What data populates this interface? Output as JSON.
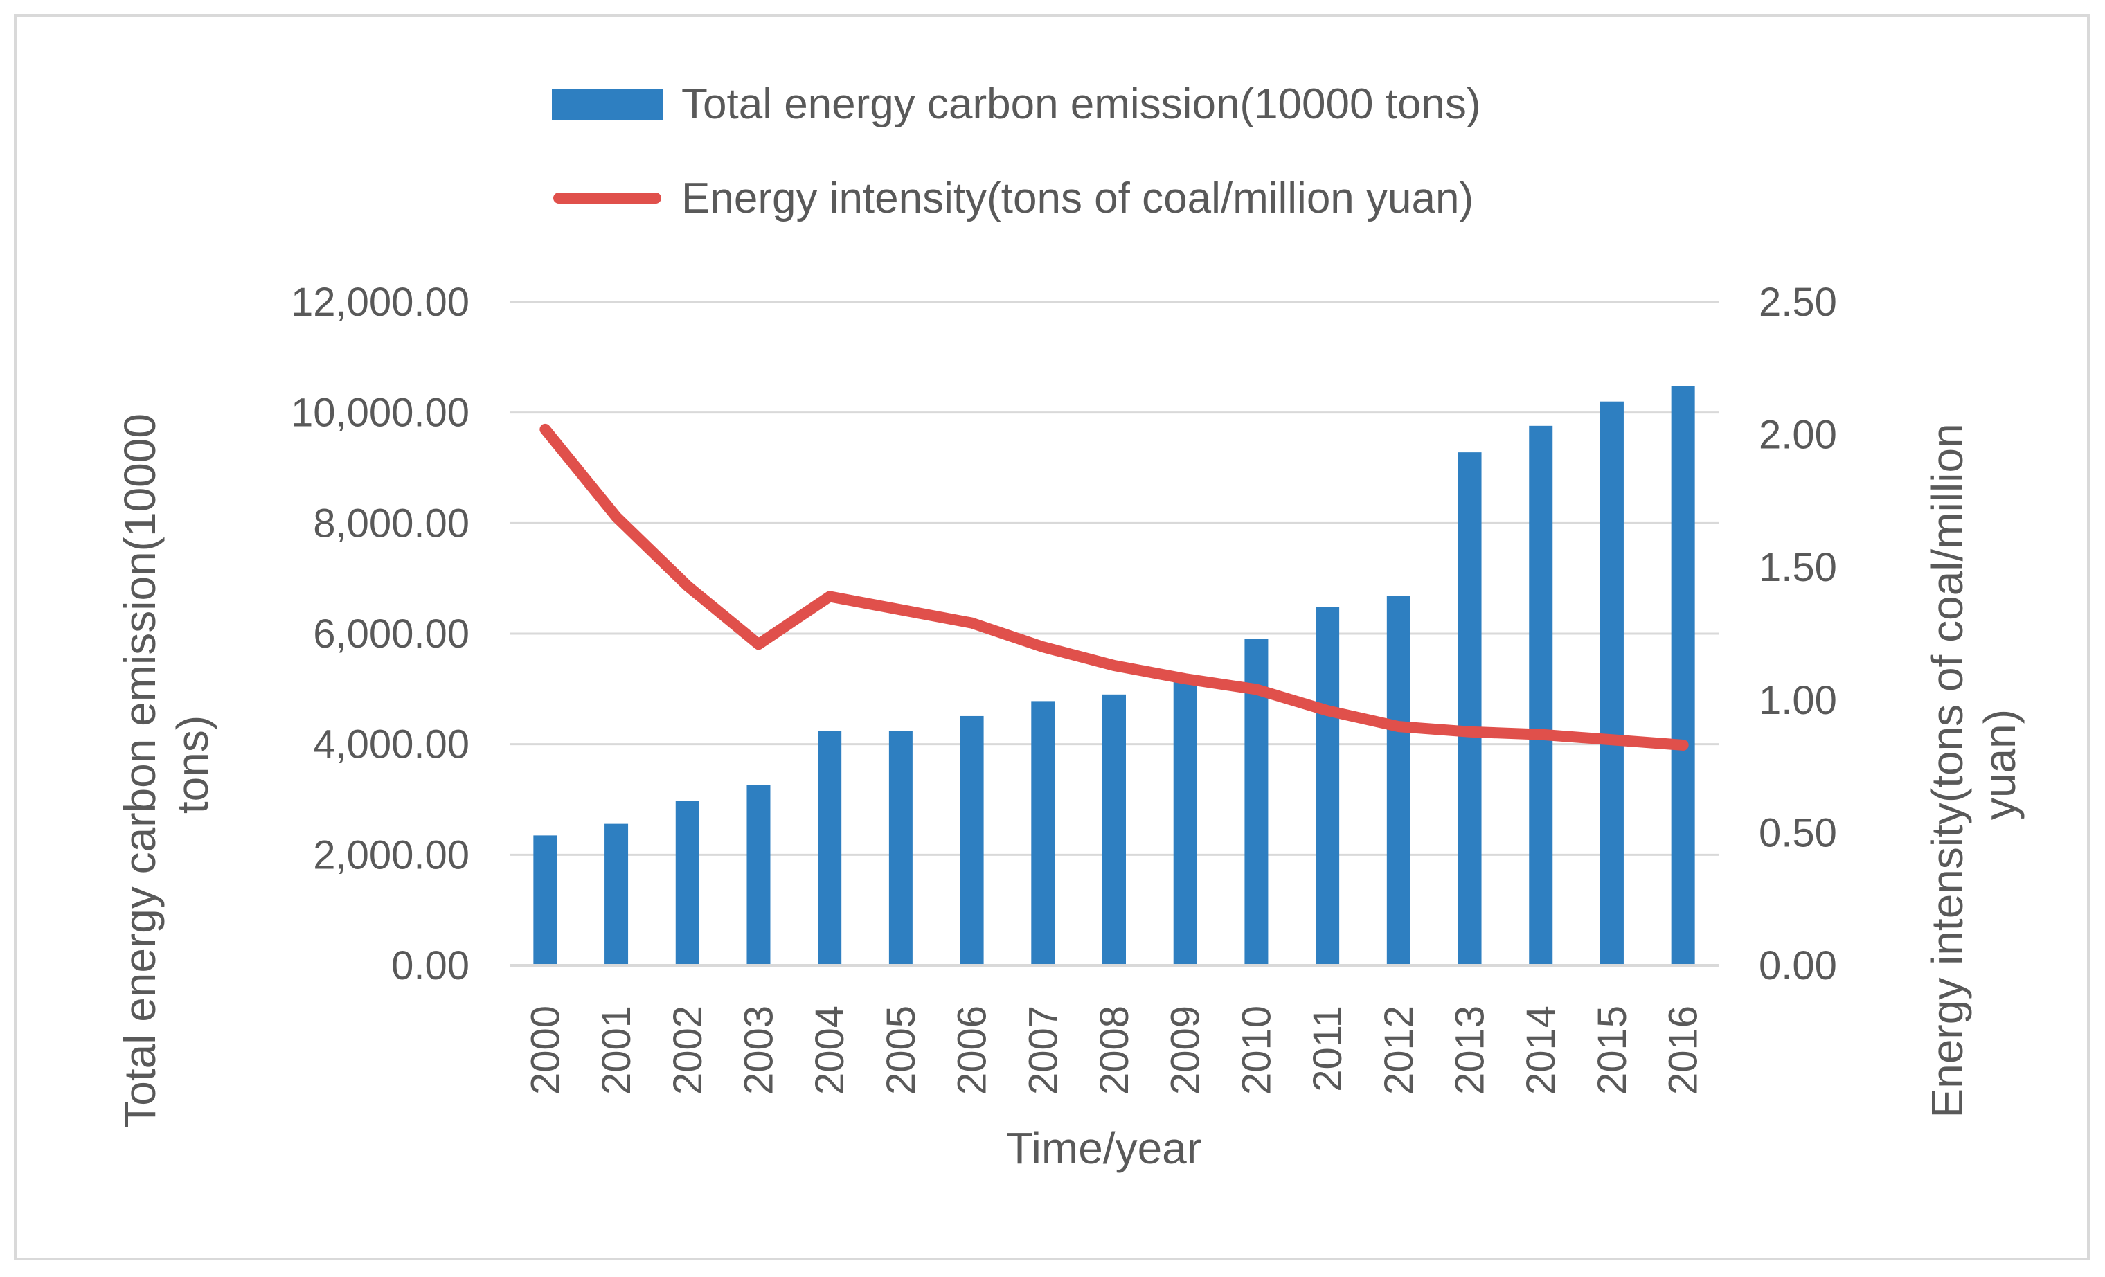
{
  "chart_data": {
    "type": "bar+line",
    "categories": [
      "2000",
      "2001",
      "2002",
      "2003",
      "2004",
      "2005",
      "2006",
      "2007",
      "2008",
      "2009",
      "2010",
      "2011",
      "2012",
      "2013",
      "2014",
      "2015",
      "2016"
    ],
    "series": [
      {
        "name": "Total energy carbon emission(10000 tons)",
        "type": "bar",
        "axis": "left",
        "color": "#2e7fc1",
        "values": [
          2350,
          2560,
          2970,
          3260,
          4240,
          4240,
          4510,
          4780,
          4900,
          5230,
          5910,
          6480,
          6680,
          9280,
          9760,
          10200,
          10480
        ]
      },
      {
        "name": "Energy intensity(tons of coal/million yuan)",
        "type": "line",
        "axis": "right",
        "color": "#e0504b",
        "values": [
          2.02,
          1.69,
          1.43,
          1.21,
          1.39,
          1.34,
          1.29,
          1.2,
          1.13,
          1.08,
          1.04,
          0.96,
          0.9,
          0.88,
          0.87,
          0.85,
          0.83
        ]
      }
    ],
    "left_axis": {
      "title": "Total energy carbon emission(10000 tons)",
      "title_lines": [
        "Total energy carbon emission(10000",
        "tons)"
      ],
      "ylim": [
        0,
        12000
      ],
      "ticks": [
        0,
        2000,
        4000,
        6000,
        8000,
        10000,
        12000
      ],
      "tick_labels": [
        "0.00",
        "2,000.00",
        "4,000.00",
        "6,000.00",
        "8,000.00",
        "10,000.00",
        "12,000.00"
      ]
    },
    "right_axis": {
      "title": "Energy intensity(tons of coal/million yuan)",
      "title_lines": [
        "Energy intensity(tons of coal/million",
        "yuan)"
      ],
      "ylim": [
        0,
        2.5
      ],
      "ticks": [
        0,
        0.5,
        1,
        1.5,
        2,
        2.5
      ],
      "tick_labels": [
        "0.00",
        "0.50",
        "1.00",
        "1.50",
        "2.00",
        "2.50"
      ]
    },
    "xlabel": "Time/year",
    "legend_position": "top",
    "grid": true,
    "gridline_color": "#d9d9d9"
  }
}
